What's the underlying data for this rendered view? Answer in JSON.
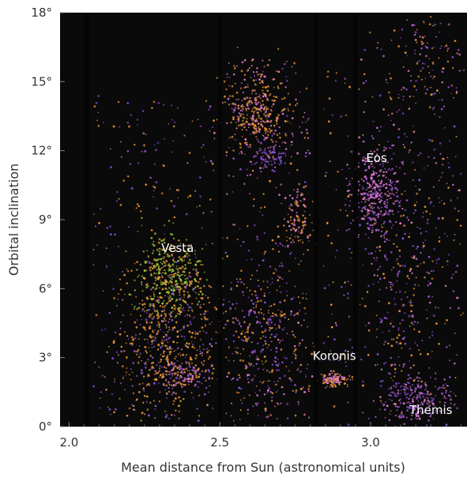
{
  "chart_data": {
    "type": "scatter",
    "title": "",
    "xlabel": "Mean distance from Sun (astronomical units)",
    "ylabel": "Orbital inclination",
    "xlim": [
      1.97,
      3.32
    ],
    "ylim": [
      0,
      18
    ],
    "x_ticks": [
      2.0,
      2.5,
      3.0
    ],
    "x_tick_labels": [
      "2.0",
      "2.5",
      "3.0"
    ],
    "y_ticks": [
      0,
      3,
      6,
      9,
      12,
      15,
      18
    ],
    "y_tick_labels": [
      "0°",
      "3°",
      "6°",
      "9°",
      "12°",
      "15°",
      "18°"
    ],
    "background": "#0a0a0a",
    "grid": false,
    "colors": {
      "orange": "#e8943a",
      "purple": "#8a4fd0",
      "green": "#9ccc3a",
      "pink": "#e07ad0"
    },
    "annotations": [
      {
        "text": "Vesta",
        "x": 2.36,
        "y": 7.6
      },
      {
        "text": "Eos",
        "x": 3.02,
        "y": 11.5
      },
      {
        "text": "Koronis",
        "x": 2.88,
        "y": 2.9
      },
      {
        "text": "Themis",
        "x": 3.2,
        "y": 0.55
      }
    ],
    "kirkwood_gaps": [
      2.06,
      2.5,
      2.82,
      2.95
    ],
    "clusters": [
      {
        "name": "Vesta",
        "x": 2.33,
        "y": 6.5,
        "sx": 0.06,
        "sy": 0.9,
        "n": 380,
        "colors": [
          "green",
          "green",
          "orange"
        ]
      },
      {
        "name": "Eos",
        "x": 3.02,
        "y": 10.0,
        "sx": 0.04,
        "sy": 0.9,
        "n": 320,
        "colors": [
          "pink",
          "purple",
          "pink"
        ]
      },
      {
        "name": "Koronis",
        "x": 2.88,
        "y": 2.05,
        "sx": 0.025,
        "sy": 0.15,
        "n": 110,
        "colors": [
          "orange",
          "pink"
        ]
      },
      {
        "name": "Themis",
        "x": 3.15,
        "y": 1.2,
        "sx": 0.05,
        "sy": 0.5,
        "n": 220,
        "colors": [
          "purple",
          "purple",
          "pink"
        ]
      },
      {
        "name": "",
        "x": 2.62,
        "y": 13.7,
        "sx": 0.05,
        "sy": 1.0,
        "n": 330,
        "colors": [
          "orange",
          "orange",
          "pink"
        ]
      },
      {
        "name": "",
        "x": 2.66,
        "y": 11.8,
        "sx": 0.03,
        "sy": 0.3,
        "n": 80,
        "colors": [
          "purple"
        ]
      },
      {
        "name": "",
        "x": 2.76,
        "y": 9.0,
        "sx": 0.025,
        "sy": 0.6,
        "n": 90,
        "colors": [
          "orange",
          "pink"
        ]
      },
      {
        "name": "",
        "x": 2.32,
        "y": 3.5,
        "sx": 0.08,
        "sy": 1.5,
        "n": 520,
        "colors": [
          "orange",
          "orange",
          "purple"
        ]
      },
      {
        "name": "",
        "x": 2.38,
        "y": 2.3,
        "sx": 0.04,
        "sy": 0.25,
        "n": 90,
        "colors": [
          "orange",
          "purple",
          "pink"
        ]
      },
      {
        "name": "",
        "x": 2.64,
        "y": 4.0,
        "sx": 0.07,
        "sy": 2.0,
        "n": 300,
        "colors": [
          "orange",
          "purple"
        ]
      },
      {
        "name": "",
        "x": 3.18,
        "y": 16.0,
        "sx": 0.05,
        "sy": 1.2,
        "n": 80,
        "colors": [
          "orange",
          "purple"
        ]
      },
      {
        "name": "",
        "x": 3.12,
        "y": 6.0,
        "sx": 0.08,
        "sy": 3.0,
        "n": 220,
        "colors": [
          "purple",
          "purple",
          "orange"
        ]
      }
    ],
    "background_fields": [
      {
        "x": [
          2.08,
          2.48
        ],
        "y": [
          0.3,
          14.5
        ],
        "n": 260,
        "colors": [
          "orange",
          "purple"
        ]
      },
      {
        "x": [
          2.52,
          2.8
        ],
        "y": [
          0.3,
          16.0
        ],
        "n": 320,
        "colors": [
          "orange",
          "purple",
          "pink"
        ]
      },
      {
        "x": [
          2.84,
          2.94
        ],
        "y": [
          0.3,
          16.0
        ],
        "n": 80,
        "colors": [
          "purple",
          "orange"
        ]
      },
      {
        "x": [
          2.96,
          3.3
        ],
        "y": [
          0.3,
          17.5
        ],
        "n": 360,
        "colors": [
          "purple",
          "orange",
          "pink"
        ]
      }
    ]
  }
}
